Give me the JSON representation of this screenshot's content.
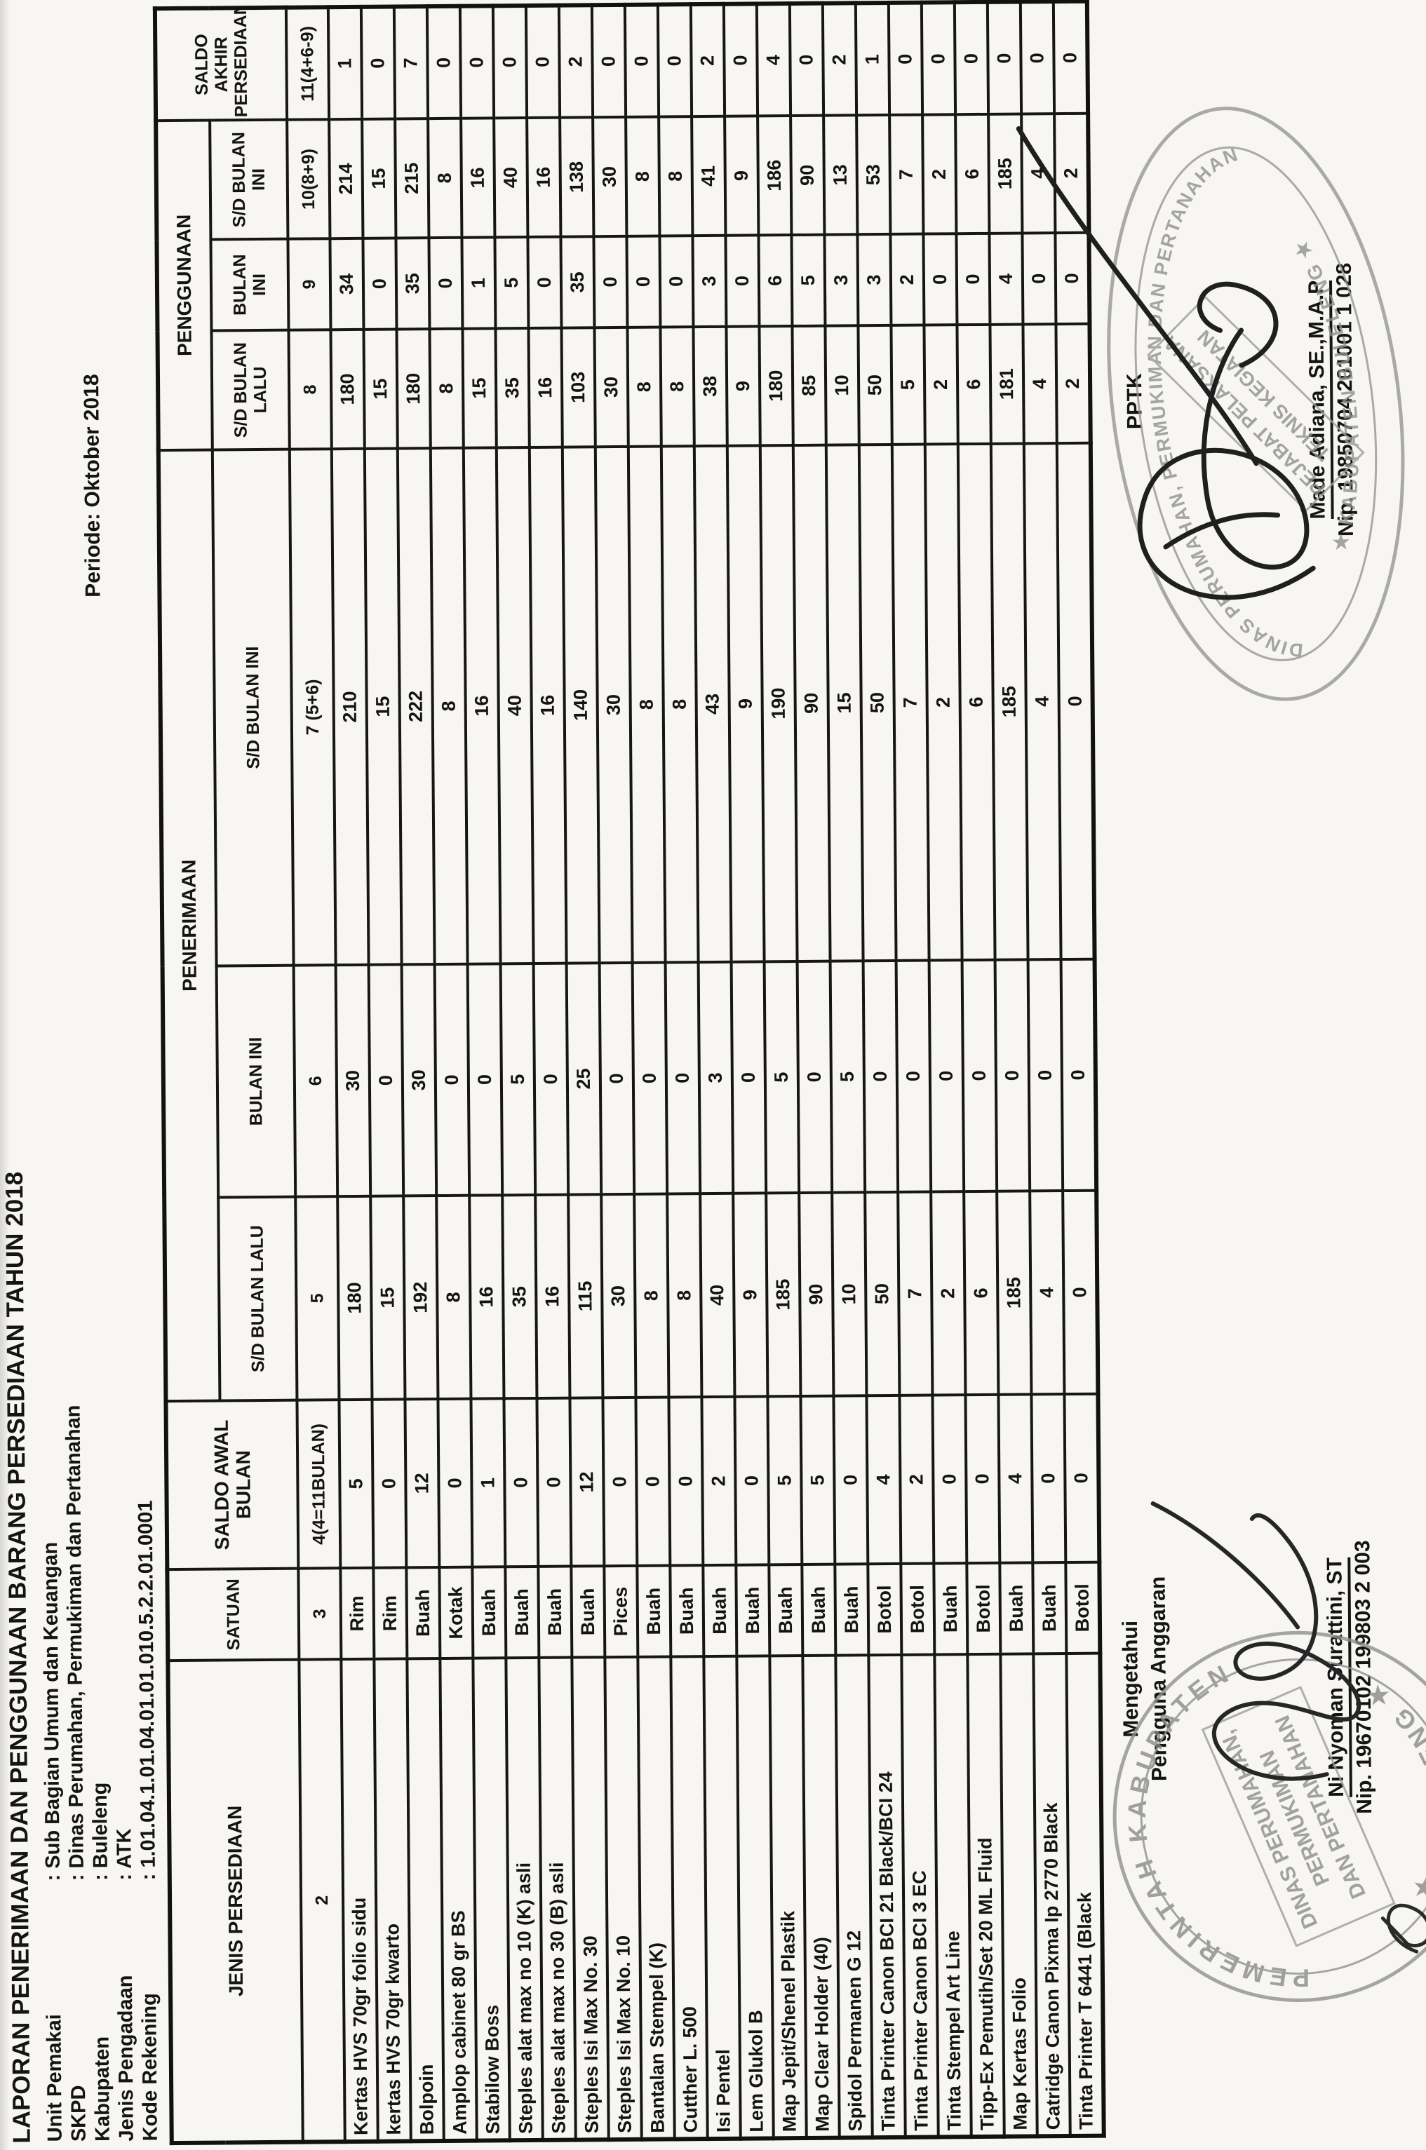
{
  "page": {
    "title": "LAPORAN PENERIMAAN DAN PENGGUNAAN BARANG PERSEDIAAN TAHUN 2018",
    "periode": "Periode: Oktober  2018",
    "info": [
      {
        "label": "Unit Pemakai",
        "value": ": Sub Bagian Umum dan Keuangan"
      },
      {
        "label": "SKPD",
        "value": ": Dinas Perumahan, Permukiman dan Pertanahan"
      },
      {
        "label": "Kabupaten",
        "value": ": Buleleng"
      },
      {
        "label": "Jenis Pengadaan",
        "value": ": ATK"
      },
      {
        "label": "Kode Rekening",
        "value": ": 1.01.04.1.01.04.01.01.010.5.2.2.01.0001"
      }
    ]
  },
  "table": {
    "headers": {
      "jenis": "JENIS PERSEDIAAN",
      "satuan": "SATUAN",
      "saldo_awal": "SALDO AWAL BULAN",
      "penerimaan": "PENERIMAAN",
      "penggunaan": "PENGGUNAAN",
      "saldo_akhir": "SALDO AKHIR PERSEDIAAN"
    },
    "sub": [
      "S/D BULAN LALU",
      "BULAN INI",
      "S/D BULAN INI"
    ],
    "col_numbers": [
      "2",
      "3",
      "4(4=11BULAN)",
      "5",
      "6",
      "7 (5+6)",
      "8",
      "9",
      "10(8+9)",
      "11(4+6-9)"
    ],
    "rows": [
      {
        "name": "Kertas HVS 70gr folio sidu",
        "satuan": "Rim",
        "c4": "5",
        "c5": "180",
        "c6": "30",
        "c7": "210",
        "c8": "180",
        "c9": "34",
        "c10": "214",
        "c11": "1"
      },
      {
        "name": "kertas HVS 70gr kwarto",
        "satuan": "Rim",
        "c4": "0",
        "c5": "15",
        "c6": "0",
        "c7": "15",
        "c8": "15",
        "c9": "0",
        "c10": "15",
        "c11": "0"
      },
      {
        "name": "Bolpoin",
        "satuan": "Buah",
        "c4": "12",
        "c5": "192",
        "c6": "30",
        "c7": "222",
        "c8": "180",
        "c9": "35",
        "c10": "215",
        "c11": "7"
      },
      {
        "name": "Amplop cabinet 80 gr BS",
        "satuan": "Kotak",
        "c4": "0",
        "c5": "8",
        "c6": "0",
        "c7": "8",
        "c8": "8",
        "c9": "0",
        "c10": "8",
        "c11": "0"
      },
      {
        "name": "Stabilow Boss",
        "satuan": "Buah",
        "c4": "1",
        "c5": "16",
        "c6": "0",
        "c7": "16",
        "c8": "15",
        "c9": "1",
        "c10": "16",
        "c11": "0"
      },
      {
        "name": "Steples alat max no 10 (K) asli",
        "satuan": "Buah",
        "c4": "0",
        "c5": "35",
        "c6": "5",
        "c7": "40",
        "c8": "35",
        "c9": "5",
        "c10": "40",
        "c11": "0"
      },
      {
        "name": "Steples alat max no 30 (B) asli",
        "satuan": "Buah",
        "c4": "0",
        "c5": "16",
        "c6": "0",
        "c7": "16",
        "c8": "16",
        "c9": "0",
        "c10": "16",
        "c11": "0"
      },
      {
        "name": "Steples Isi Max No. 30",
        "satuan": "Buah",
        "c4": "12",
        "c5": "115",
        "c6": "25",
        "c7": "140",
        "c8": "103",
        "c9": "35",
        "c10": "138",
        "c11": "2"
      },
      {
        "name": "Steples Isi Max No. 10",
        "satuan": "Pices",
        "c4": "0",
        "c5": "30",
        "c6": "0",
        "c7": "30",
        "c8": "30",
        "c9": "0",
        "c10": "30",
        "c11": "0"
      },
      {
        "name": "Bantalan Stempel (K)",
        "satuan": "Buah",
        "c4": "0",
        "c5": "8",
        "c6": "0",
        "c7": "8",
        "c8": "8",
        "c9": "0",
        "c10": "8",
        "c11": "0"
      },
      {
        "name": "Cutther L. 500",
        "satuan": "Buah",
        "c4": "0",
        "c5": "8",
        "c6": "0",
        "c7": "8",
        "c8": "8",
        "c9": "0",
        "c10": "8",
        "c11": "0"
      },
      {
        "name": "Isi Pentel",
        "satuan": "Buah",
        "c4": "2",
        "c5": "40",
        "c6": "3",
        "c7": "43",
        "c8": "38",
        "c9": "3",
        "c10": "41",
        "c11": "2"
      },
      {
        "name": "Lem Glukol B",
        "satuan": "Buah",
        "c4": "0",
        "c5": "9",
        "c6": "0",
        "c7": "9",
        "c8": "9",
        "c9": "0",
        "c10": "9",
        "c11": "0"
      },
      {
        "name": "Map Jepit/Shenel Plastik",
        "satuan": "Buah",
        "c4": "5",
        "c5": "185",
        "c6": "5",
        "c7": "190",
        "c8": "180",
        "c9": "6",
        "c10": "186",
        "c11": "4"
      },
      {
        "name": "Map Clear Holder (40)",
        "satuan": "Buah",
        "c4": "5",
        "c5": "90",
        "c6": "0",
        "c7": "90",
        "c8": "85",
        "c9": "5",
        "c10": "90",
        "c11": "0"
      },
      {
        "name": "Spidol Permanen G 12",
        "satuan": "Buah",
        "c4": "0",
        "c5": "10",
        "c6": "5",
        "c7": "15",
        "c8": "10",
        "c9": "3",
        "c10": "13",
        "c11": "2"
      },
      {
        "name": "Tinta Printer Canon BCI 21 Black/BCI 24",
        "satuan": "Botol",
        "c4": "4",
        "c5": "50",
        "c6": "0",
        "c7": "50",
        "c8": "50",
        "c9": "3",
        "c10": "53",
        "c11": "1"
      },
      {
        "name": "Tinta Printer Canon BCI 3 EC",
        "satuan": "Botol",
        "c4": "2",
        "c5": "7",
        "c6": "0",
        "c7": "7",
        "c8": "5",
        "c9": "2",
        "c10": "7",
        "c11": "0"
      },
      {
        "name": "Tinta Stempel Art Line",
        "satuan": "Buah",
        "c4": "0",
        "c5": "2",
        "c6": "0",
        "c7": "2",
        "c8": "2",
        "c9": "0",
        "c10": "2",
        "c11": "0"
      },
      {
        "name": "Tipp-Ex Pemutih/Set 20 ML Fluid",
        "satuan": "Botol",
        "c4": "0",
        "c5": "6",
        "c6": "0",
        "c7": "6",
        "c8": "6",
        "c9": "0",
        "c10": "6",
        "c11": "0"
      },
      {
        "name": "Map Kertas Folio",
        "satuan": "Buah",
        "c4": "4",
        "c5": "185",
        "c6": "0",
        "c7": "185",
        "c8": "181",
        "c9": "4",
        "c10": "185",
        "c11": "0"
      },
      {
        "name": "Catridge Canon Pixma Ip 2770 Black",
        "satuan": "Buah",
        "c4": "0",
        "c5": "4",
        "c6": "0",
        "c7": "4",
        "c8": "4",
        "c9": "0",
        "c10": "4",
        "c11": "0"
      },
      {
        "name": "Tinta Printer T 6441 (Black",
        "satuan": "Botol",
        "c4": "0",
        "c5": "0",
        "c6": "0",
        "c7": "0",
        "c8": "2",
        "c9": "0",
        "c10": "2",
        "c11": "0"
      }
    ]
  },
  "signatures": {
    "left": {
      "heading1": "Mengetahui",
      "heading2": "Pengguna Anggaran",
      "name": "Ni Nyoman Surattini, ST",
      "nip": "Nip. 19670102 199803 2 003",
      "stamp_ring_top": "PEMERINTAH KABUPATEN",
      "stamp_ring_bottom": "★ BULELENG ★",
      "stamp_box": [
        "DINAS PERUMAHAN,",
        "PERMUKIMAN",
        "DAN PERTANAHAN"
      ]
    },
    "right": {
      "heading1": "PPTK",
      "name": "Made Adiana, SE.,M.A.P",
      "nip": "Nip. 19850704 201001 1 028",
      "stamp_ring_top": "DINAS PERUMAHAN, PERMUKIMAN DAN PERTANAHAN",
      "stamp_ring_bottom": "★  KABUPATEN BULELENG  ★",
      "stamp_box": [
        "PEJABAT PELAKSANA",
        "TEKNIS KEGIATAN"
      ]
    }
  }
}
